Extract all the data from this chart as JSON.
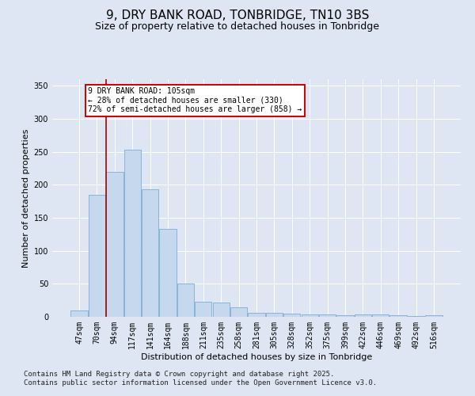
{
  "title1": "9, DRY BANK ROAD, TONBRIDGE, TN10 3BS",
  "title2": "Size of property relative to detached houses in Tonbridge",
  "xlabel": "Distribution of detached houses by size in Tonbridge",
  "ylabel": "Number of detached properties",
  "categories": [
    "47sqm",
    "70sqm",
    "94sqm",
    "117sqm",
    "141sqm",
    "164sqm",
    "188sqm",
    "211sqm",
    "235sqm",
    "258sqm",
    "281sqm",
    "305sqm",
    "328sqm",
    "352sqm",
    "375sqm",
    "399sqm",
    "422sqm",
    "446sqm",
    "469sqm",
    "492sqm",
    "516sqm"
  ],
  "values": [
    10,
    185,
    220,
    253,
    193,
    133,
    50,
    23,
    22,
    15,
    6,
    6,
    5,
    4,
    4,
    2,
    4,
    4,
    2,
    1,
    2
  ],
  "bar_color": "#c5d8ee",
  "bar_edge_color": "#7aadd4",
  "vline_x_index": 2,
  "vline_color": "#aa0000",
  "annotation_text": "9 DRY BANK ROAD: 105sqm\n← 28% of detached houses are smaller (330)\n72% of semi-detached houses are larger (858) →",
  "annotation_box_facecolor": "#ffffff",
  "annotation_box_edgecolor": "#cc0000",
  "ylim": [
    0,
    360
  ],
  "yticks": [
    0,
    50,
    100,
    150,
    200,
    250,
    300,
    350
  ],
  "footer": "Contains HM Land Registry data © Crown copyright and database right 2025.\nContains public sector information licensed under the Open Government Licence v3.0.",
  "bg_color": "#dde6f2",
  "plot_bg_color": "#dde6f2",
  "title1_fontsize": 11,
  "title2_fontsize": 9,
  "axis_label_fontsize": 8,
  "tick_fontsize": 7,
  "footer_fontsize": 6.5
}
